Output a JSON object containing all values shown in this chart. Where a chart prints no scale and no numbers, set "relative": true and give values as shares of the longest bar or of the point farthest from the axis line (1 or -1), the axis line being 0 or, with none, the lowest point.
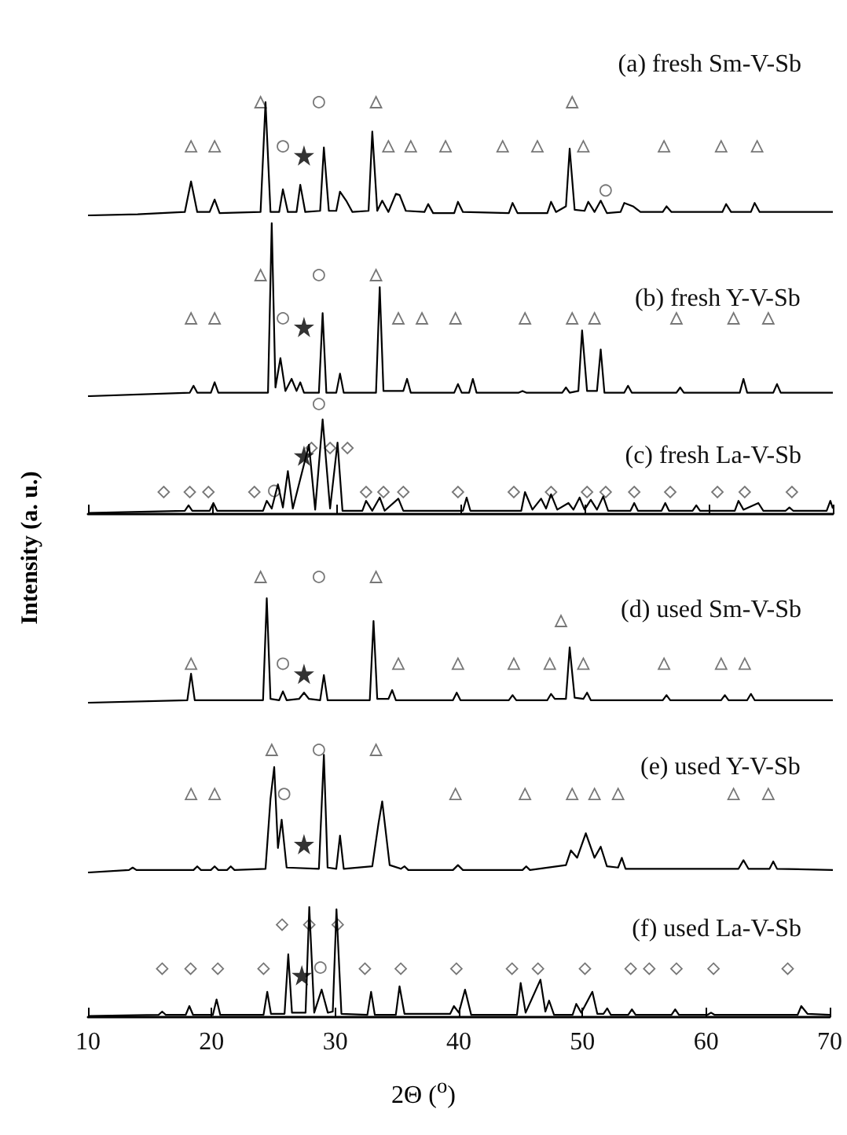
{
  "chart_data": [
    {
      "type": "line",
      "relative": true,
      "xlim": [
        10,
        70
      ],
      "xticks": [
        10,
        20,
        30,
        40,
        50,
        60,
        70
      ],
      "tick_labels": false,
      "series": [
        {
          "name": "(a) fresh Sm-V-Sb",
          "color": "#000000",
          "x": [
            10,
            14,
            17.8,
            18.3,
            18.8,
            19.8,
            20.2,
            20.6,
            23.9,
            24.3,
            24.7,
            25.4,
            25.7,
            26.1,
            26.8,
            27.1,
            27.5,
            28.7,
            29.0,
            29.4,
            30.0,
            30.3,
            30.8,
            31.3,
            32.6,
            32.9,
            33.3,
            33.7,
            34.2,
            34.8,
            35.1,
            35.6,
            37.1,
            37.4,
            37.8,
            39.5,
            39.8,
            40.2,
            43.9,
            44.2,
            44.6,
            47.0,
            47.3,
            47.7,
            48.5,
            48.8,
            49.2,
            50.0,
            50.3,
            50.8,
            51.3,
            51.8,
            52.9,
            53.2,
            53.9,
            54.5,
            56.3,
            56.6,
            57.0,
            61.1,
            61.4,
            61.8,
            63.4,
            63.7,
            64.1,
            70
          ],
          "values": [
            0.0,
            0.01,
            0.03,
            0.3,
            0.03,
            0.03,
            0.14,
            0.02,
            0.03,
            1.0,
            0.03,
            0.03,
            0.23,
            0.03,
            0.03,
            0.27,
            0.03,
            0.04,
            0.6,
            0.04,
            0.04,
            0.21,
            0.13,
            0.03,
            0.04,
            0.74,
            0.04,
            0.13,
            0.03,
            0.19,
            0.18,
            0.04,
            0.03,
            0.1,
            0.02,
            0.02,
            0.12,
            0.03,
            0.02,
            0.11,
            0.02,
            0.02,
            0.12,
            0.03,
            0.08,
            0.59,
            0.05,
            0.04,
            0.12,
            0.03,
            0.13,
            0.02,
            0.03,
            0.11,
            0.08,
            0.03,
            0.03,
            0.08,
            0.03,
            0.03,
            0.1,
            0.03,
            0.03,
            0.11,
            0.03,
            0.03
          ]
        },
        {
          "type": "scatter",
          "marker": "triangle",
          "color": "#555555",
          "x": [
            18.3,
            20.2,
            23.9,
            33.2,
            34.2,
            36.0,
            38.8,
            43.4,
            46.2,
            49.0,
            49.9,
            56.4,
            61.0,
            63.9
          ],
          "values": [
            0.61,
            0.61,
            1.0,
            1.0,
            0.61,
            0.61,
            0.61,
            0.61,
            0.61,
            1.0,
            0.61,
            0.61,
            0.61,
            0.61
          ]
        },
        {
          "type": "scatter",
          "marker": "circle",
          "color": "#555555",
          "x": [
            25.7,
            28.6,
            51.7
          ],
          "values": [
            0.61,
            1.0,
            0.22
          ]
        },
        {
          "type": "scatter",
          "marker": "star",
          "color": "#000000",
          "x": [
            27.4
          ],
          "values": [
            0.53
          ]
        }
      ]
    },
    {
      "type": "line",
      "relative": true,
      "xlim": [
        10,
        70
      ],
      "xticks": [
        10,
        20,
        30,
        40,
        50,
        60,
        70
      ],
      "tick_labels": false,
      "series": [
        {
          "name": "(b) fresh Y-V-Sb",
          "color": "#000000",
          "x": [
            10,
            18.2,
            18.5,
            18.8,
            19.9,
            20.2,
            20.5,
            24.5,
            24.8,
            25.1,
            25.5,
            25.9,
            26.4,
            26.8,
            27.1,
            27.4,
            28.6,
            28.9,
            29.2,
            30.0,
            30.3,
            30.6,
            33.2,
            33.5,
            33.8,
            35.4,
            35.7,
            36.0,
            39.5,
            39.8,
            40.1,
            40.7,
            41.0,
            41.3,
            44.7,
            45.0,
            45.3,
            48.2,
            48.5,
            48.8,
            49.5,
            49.8,
            50.2,
            51.0,
            51.3,
            51.6,
            53.2,
            53.5,
            53.8,
            57.4,
            57.7,
            58.0,
            62.5,
            62.8,
            63.1,
            65.2,
            65.5,
            65.8,
            70
          ],
          "values": [
            0.0,
            0.02,
            0.06,
            0.02,
            0.02,
            0.08,
            0.02,
            0.02,
            1.0,
            0.05,
            0.22,
            0.03,
            0.1,
            0.03,
            0.08,
            0.02,
            0.02,
            0.48,
            0.02,
            0.02,
            0.13,
            0.02,
            0.02,
            0.63,
            0.03,
            0.03,
            0.1,
            0.02,
            0.02,
            0.07,
            0.02,
            0.02,
            0.1,
            0.02,
            0.02,
            0.03,
            0.02,
            0.02,
            0.05,
            0.02,
            0.03,
            0.38,
            0.03,
            0.03,
            0.27,
            0.02,
            0.02,
            0.06,
            0.02,
            0.02,
            0.05,
            0.02,
            0.02,
            0.1,
            0.02,
            0.02,
            0.07,
            0.02,
            0.02
          ]
        },
        {
          "type": "scatter",
          "marker": "triangle",
          "color": "#555555",
          "x": [
            18.3,
            20.2,
            23.9,
            33.2,
            35.0,
            36.9,
            39.6,
            45.2,
            49.0,
            50.8,
            57.4,
            62.0,
            64.8
          ],
          "values": [
            0.45,
            0.45,
            0.7,
            0.7,
            0.45,
            0.45,
            0.45,
            0.45,
            0.45,
            0.45,
            0.45,
            0.45,
            0.45
          ]
        },
        {
          "type": "scatter",
          "marker": "circle",
          "color": "#555555",
          "x": [
            25.7,
            28.6
          ],
          "values": [
            0.45,
            0.7
          ]
        },
        {
          "type": "scatter",
          "marker": "star",
          "color": "#000000",
          "x": [
            27.4
          ],
          "values": [
            0.4
          ]
        }
      ]
    },
    {
      "type": "line",
      "relative": true,
      "xlim": [
        10,
        70
      ],
      "xticks": [
        10,
        20,
        30,
        40,
        50,
        60,
        70
      ],
      "tick_labels": false,
      "series": [
        {
          "name": "(c) fresh La-V-Sb",
          "color": "#000000",
          "x": [
            10,
            17.8,
            18.1,
            18.4,
            19.8,
            20.1,
            20.4,
            24.1,
            24.4,
            24.8,
            25.3,
            25.7,
            26.1,
            26.5,
            27.8,
            28.3,
            28.9,
            29.5,
            30.1,
            30.5,
            32.1,
            32.4,
            32.9,
            33.5,
            33.9,
            35.0,
            35.4,
            40.2,
            40.5,
            40.8,
            44.9,
            45.2,
            45.8,
            46.5,
            46.9,
            47.3,
            47.8,
            48.7,
            49.1,
            49.6,
            50.0,
            50.5,
            51.0,
            51.5,
            51.9,
            53.7,
            54.0,
            54.3,
            56.2,
            56.5,
            56.8,
            58.7,
            59.0,
            59.3,
            62.1,
            62.4,
            62.8,
            64.0,
            64.4,
            66.2,
            66.5,
            66.8,
            69.5,
            69.8,
            70
          ],
          "values": [
            0.01,
            0.03,
            0.08,
            0.03,
            0.03,
            0.1,
            0.03,
            0.03,
            0.12,
            0.05,
            0.27,
            0.06,
            0.39,
            0.05,
            0.63,
            0.04,
            0.86,
            0.05,
            0.65,
            0.03,
            0.03,
            0.12,
            0.03,
            0.15,
            0.03,
            0.14,
            0.03,
            0.03,
            0.15,
            0.03,
            0.03,
            0.2,
            0.04,
            0.14,
            0.05,
            0.18,
            0.04,
            0.1,
            0.04,
            0.15,
            0.04,
            0.13,
            0.04,
            0.16,
            0.03,
            0.03,
            0.1,
            0.03,
            0.03,
            0.1,
            0.03,
            0.03,
            0.08,
            0.03,
            0.03,
            0.12,
            0.04,
            0.1,
            0.03,
            0.03,
            0.06,
            0.03,
            0.03,
            0.12,
            0.05
          ]
        },
        {
          "type": "scatter",
          "marker": "diamond",
          "color": "#555555",
          "x": [
            16.1,
            18.2,
            19.7,
            23.4,
            28.0,
            29.5,
            30.9,
            32.4,
            33.8,
            35.4,
            39.8,
            44.3,
            47.3,
            50.2,
            51.7,
            54.0,
            56.9,
            60.7,
            62.9,
            66.7
          ],
          "values": [
            0.2,
            0.2,
            0.2,
            0.2,
            0.6,
            0.6,
            0.6,
            0.2,
            0.2,
            0.2,
            0.2,
            0.2,
            0.2,
            0.2,
            0.2,
            0.2,
            0.2,
            0.2,
            0.2,
            0.2
          ]
        },
        {
          "type": "scatter",
          "marker": "circle",
          "color": "#555555",
          "x": [
            25.0,
            28.6
          ],
          "values": [
            0.21,
            1.0
          ]
        },
        {
          "type": "scatter",
          "marker": "star",
          "color": "#000000",
          "x": [
            27.4
          ],
          "values": [
            0.53
          ]
        }
      ]
    },
    {
      "type": "line",
      "relative": true,
      "xlim": [
        10,
        70
      ],
      "xticks": [
        10,
        20,
        30,
        40,
        50,
        60,
        70
      ],
      "tick_labels": false,
      "ylabel": "Intensity (a. u.)",
      "series": [
        {
          "name": "(d) used Sm-V-Sb",
          "color": "#000000",
          "x": [
            10,
            18.0,
            18.3,
            18.6,
            24.1,
            24.4,
            24.7,
            25.4,
            25.7,
            26.0,
            27.0,
            27.4,
            27.8,
            28.7,
            29.0,
            29.3,
            32.7,
            33.0,
            33.3,
            34.2,
            34.5,
            34.8,
            39.4,
            39.7,
            40.0,
            43.9,
            44.2,
            44.5,
            47.0,
            47.3,
            47.6,
            48.5,
            48.8,
            49.2,
            49.9,
            50.2,
            50.5,
            56.3,
            56.6,
            56.9,
            61.0,
            61.3,
            61.6,
            63.1,
            63.4,
            63.7,
            70
          ],
          "values": [
            0.0,
            0.02,
            0.23,
            0.02,
            0.02,
            0.83,
            0.03,
            0.02,
            0.09,
            0.02,
            0.03,
            0.08,
            0.03,
            0.02,
            0.22,
            0.02,
            0.02,
            0.65,
            0.03,
            0.03,
            0.1,
            0.02,
            0.02,
            0.08,
            0.02,
            0.02,
            0.06,
            0.02,
            0.02,
            0.07,
            0.03,
            0.03,
            0.44,
            0.04,
            0.03,
            0.08,
            0.02,
            0.02,
            0.06,
            0.02,
            0.02,
            0.06,
            0.02,
            0.02,
            0.07,
            0.02,
            0.02
          ]
        },
        {
          "type": "scatter",
          "marker": "triangle",
          "color": "#555555",
          "x": [
            18.3,
            23.9,
            33.2,
            35.0,
            39.8,
            44.3,
            47.2,
            48.1,
            49.9,
            56.4,
            61.0,
            62.9
          ],
          "values": [
            0.31,
            1.0,
            1.0,
            0.31,
            0.31,
            0.31,
            0.31,
            0.65,
            0.31,
            0.31,
            0.31,
            0.31
          ]
        },
        {
          "type": "scatter",
          "marker": "circle",
          "color": "#555555",
          "x": [
            25.7,
            28.6
          ],
          "values": [
            0.31,
            1.0
          ]
        },
        {
          "type": "scatter",
          "marker": "star",
          "color": "#000000",
          "x": [
            27.4
          ],
          "values": [
            0.23
          ]
        }
      ]
    },
    {
      "type": "line",
      "relative": true,
      "xlim": [
        10,
        70
      ],
      "xticks": [
        10,
        20,
        30,
        40,
        50,
        60,
        70
      ],
      "tick_labels": false,
      "series": [
        {
          "name": "(e) used Y-V-Sb",
          "color": "#000000",
          "x": [
            10,
            13.3,
            13.6,
            13.9,
            18.5,
            18.8,
            19.1,
            19.9,
            20.2,
            20.5,
            21.2,
            21.5,
            21.8,
            24.3,
            24.7,
            25.0,
            25.3,
            25.6,
            26.0,
            28.6,
            29.0,
            29.3,
            30.0,
            30.3,
            30.6,
            32.9,
            33.4,
            33.7,
            34.3,
            35.2,
            35.5,
            35.8,
            39.4,
            39.8,
            40.2,
            45.0,
            45.3,
            45.6,
            48.5,
            48.9,
            49.4,
            50.1,
            50.8,
            51.3,
            51.8,
            52.7,
            53.0,
            53.3,
            62.4,
            62.8,
            63.2,
            64.9,
            65.2,
            65.5,
            70
          ],
          "values": [
            0.0,
            0.02,
            0.04,
            0.02,
            0.02,
            0.05,
            0.02,
            0.02,
            0.05,
            0.02,
            0.02,
            0.05,
            0.02,
            0.03,
            0.6,
            0.86,
            0.2,
            0.43,
            0.04,
            0.03,
            0.96,
            0.04,
            0.03,
            0.3,
            0.03,
            0.05,
            0.4,
            0.58,
            0.06,
            0.03,
            0.05,
            0.02,
            0.02,
            0.06,
            0.02,
            0.02,
            0.05,
            0.02,
            0.06,
            0.18,
            0.12,
            0.32,
            0.12,
            0.21,
            0.05,
            0.04,
            0.12,
            0.03,
            0.03,
            0.1,
            0.03,
            0.03,
            0.09,
            0.03,
            0.02
          ]
        },
        {
          "type": "scatter",
          "marker": "triangle",
          "color": "#555555",
          "x": [
            18.3,
            20.2,
            24.8,
            33.2,
            39.6,
            45.2,
            49.0,
            50.8,
            52.7,
            62.0,
            64.8
          ],
          "values": [
            0.64,
            0.64,
            1.0,
            1.0,
            0.64,
            0.64,
            0.64,
            0.64,
            0.64,
            0.64,
            0.64
          ]
        },
        {
          "type": "scatter",
          "marker": "circle",
          "color": "#555555",
          "x": [
            25.8,
            28.6
          ],
          "values": [
            0.64,
            1.0
          ]
        },
        {
          "type": "scatter",
          "marker": "star",
          "color": "#000000",
          "x": [
            27.4
          ],
          "values": [
            0.23
          ]
        }
      ]
    },
    {
      "type": "line",
      "relative": true,
      "xlim": [
        10,
        70
      ],
      "xticks": [
        10,
        20,
        30,
        40,
        50,
        60,
        70
      ],
      "tick_labels": "x",
      "xlabel": "2Θ  ($^{o}$)",
      "series": [
        {
          "name": "(f) used La-V-Sb",
          "color": "#000000",
          "x": [
            10,
            15.7,
            16.0,
            16.3,
            17.9,
            18.2,
            18.5,
            20.1,
            20.4,
            20.7,
            24.2,
            24.5,
            24.8,
            25.9,
            26.2,
            26.5,
            27.6,
            27.9,
            28.3,
            28.9,
            29.4,
            29.8,
            30.1,
            30.5,
            32.6,
            32.9,
            33.2,
            34.9,
            35.2,
            35.6,
            39.3,
            39.6,
            40.0,
            40.5,
            41.0,
            44.7,
            45.0,
            45.4,
            46.6,
            47.0,
            47.3,
            47.7,
            49.2,
            49.5,
            49.9,
            50.8,
            51.2,
            51.7,
            52.0,
            52.3,
            53.7,
            54.0,
            54.3,
            57.2,
            57.5,
            57.8,
            60.1,
            60.4,
            60.7,
            67.4,
            67.7,
            68.2,
            70
          ],
          "values": [
            0.01,
            0.02,
            0.05,
            0.02,
            0.02,
            0.1,
            0.02,
            0.02,
            0.16,
            0.02,
            0.02,
            0.23,
            0.03,
            0.03,
            0.57,
            0.04,
            0.04,
            1.0,
            0.04,
            0.25,
            0.04,
            0.05,
            0.98,
            0.03,
            0.02,
            0.23,
            0.02,
            0.02,
            0.28,
            0.03,
            0.03,
            0.1,
            0.04,
            0.25,
            0.02,
            0.02,
            0.31,
            0.04,
            0.34,
            0.05,
            0.15,
            0.02,
            0.02,
            0.12,
            0.04,
            0.23,
            0.03,
            0.03,
            0.08,
            0.02,
            0.02,
            0.07,
            0.02,
            0.02,
            0.07,
            0.02,
            0.02,
            0.04,
            0.02,
            0.02,
            0.1,
            0.03,
            0.02
          ]
        },
        {
          "type": "scatter",
          "marker": "diamond",
          "color": "#555555",
          "x": [
            16.0,
            18.3,
            20.5,
            24.2,
            25.7,
            27.9,
            30.2,
            32.4,
            35.3,
            39.8,
            44.3,
            46.4,
            50.2,
            53.9,
            55.4,
            57.6,
            60.6,
            66.6
          ],
          "values": [
            0.44,
            0.44,
            0.44,
            0.44,
            0.84,
            0.84,
            0.84,
            0.44,
            0.44,
            0.44,
            0.44,
            0.44,
            0.44,
            0.44,
            0.44,
            0.44,
            0.44,
            0.44
          ]
        },
        {
          "type": "scatter",
          "marker": "circle",
          "color": "#555555",
          "x": [
            28.8
          ],
          "values": [
            0.45
          ]
        },
        {
          "type": "scatter",
          "marker": "star",
          "color": "#000000",
          "x": [
            27.3
          ],
          "values": [
            0.38
          ]
        }
      ]
    }
  ]
}
